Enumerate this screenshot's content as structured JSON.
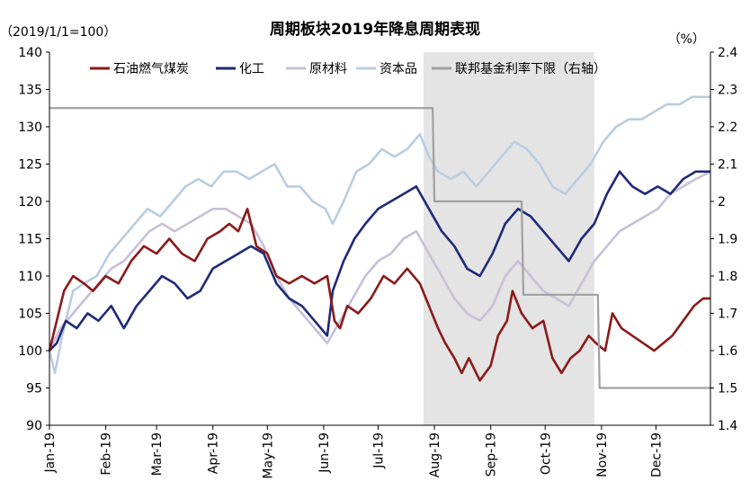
{
  "chart_data": {
    "type": "line",
    "title": "周期板块2019年降息周期表现",
    "left_unit": "（2019/1/1=100）",
    "right_unit": "（%）",
    "y_left": {
      "min": 90,
      "max": 140,
      "ticks": [
        90,
        95,
        100,
        105,
        110,
        115,
        120,
        125,
        130,
        135,
        140
      ]
    },
    "y_right": {
      "min": 1.4,
      "max": 2.4,
      "ticks": [
        "1.4",
        "1.5",
        "1.6",
        "1.7",
        "1.8",
        "1.9",
        "2",
        "2.1",
        "2.2",
        "2.3",
        "2.4"
      ]
    },
    "x_ticks": [
      "Jan-19",
      "Feb-19",
      "Mar-19",
      "Apr-19",
      "May-19",
      "Jun-19",
      "Jul-19",
      "Aug-19",
      "Sep-19",
      "Oct-19",
      "Nov-19",
      "Dec-19"
    ],
    "shaded_region": {
      "x_start": "2019-07-26",
      "x_end": "2019-10-28",
      "color": "#e4e4e4"
    },
    "legend_position": "top",
    "series": [
      {
        "name": "石油燃气煤炭",
        "color": "#8b1a1a",
        "axis": "left",
        "points": [
          [
            "2019-01-01",
            100
          ],
          [
            "2019-01-05",
            104
          ],
          [
            "2019-01-09",
            108
          ],
          [
            "2019-01-14",
            110
          ],
          [
            "2019-01-20",
            109
          ],
          [
            "2019-01-25",
            108
          ],
          [
            "2019-02-01",
            110
          ],
          [
            "2019-02-08",
            109
          ],
          [
            "2019-02-15",
            112
          ],
          [
            "2019-02-22",
            114
          ],
          [
            "2019-03-01",
            113
          ],
          [
            "2019-03-08",
            115
          ],
          [
            "2019-03-15",
            113
          ],
          [
            "2019-03-22",
            112
          ],
          [
            "2019-03-29",
            115
          ],
          [
            "2019-04-05",
            116
          ],
          [
            "2019-04-10",
            117
          ],
          [
            "2019-04-15",
            116
          ],
          [
            "2019-04-20",
            119
          ],
          [
            "2019-04-25",
            114
          ],
          [
            "2019-05-01",
            113
          ],
          [
            "2019-05-06",
            110
          ],
          [
            "2019-05-13",
            109
          ],
          [
            "2019-05-20",
            110
          ],
          [
            "2019-05-27",
            109
          ],
          [
            "2019-06-03",
            110
          ],
          [
            "2019-06-07",
            104
          ],
          [
            "2019-06-10",
            103
          ],
          [
            "2019-06-14",
            106
          ],
          [
            "2019-06-20",
            105
          ],
          [
            "2019-06-27",
            107
          ],
          [
            "2019-07-04",
            110
          ],
          [
            "2019-07-10",
            109
          ],
          [
            "2019-07-17",
            111
          ],
          [
            "2019-07-24",
            109
          ],
          [
            "2019-07-29",
            106
          ],
          [
            "2019-08-03",
            103
          ],
          [
            "2019-08-07",
            101
          ],
          [
            "2019-08-12",
            99
          ],
          [
            "2019-08-16",
            97
          ],
          [
            "2019-08-20",
            99
          ],
          [
            "2019-08-26",
            96
          ],
          [
            "2019-09-01",
            98
          ],
          [
            "2019-09-05",
            102
          ],
          [
            "2019-09-10",
            104
          ],
          [
            "2019-09-13",
            108
          ],
          [
            "2019-09-18",
            105
          ],
          [
            "2019-09-24",
            103
          ],
          [
            "2019-09-30",
            104
          ],
          [
            "2019-10-05",
            99
          ],
          [
            "2019-10-10",
            97
          ],
          [
            "2019-10-15",
            99
          ],
          [
            "2019-10-20",
            100
          ],
          [
            "2019-10-25",
            102
          ],
          [
            "2019-10-29",
            101
          ],
          [
            "2019-11-03",
            100
          ],
          [
            "2019-11-07",
            105
          ],
          [
            "2019-11-12",
            103
          ],
          [
            "2019-11-18",
            102
          ],
          [
            "2019-11-24",
            101
          ],
          [
            "2019-11-30",
            100
          ],
          [
            "2019-12-05",
            101
          ],
          [
            "2019-12-10",
            102
          ],
          [
            "2019-12-16",
            104
          ],
          [
            "2019-12-22",
            106
          ],
          [
            "2019-12-27",
            107
          ],
          [
            "2019-12-31",
            107
          ]
        ]
      },
      {
        "name": "化工",
        "color": "#1e2a78",
        "axis": "left",
        "points": [
          [
            "2019-01-01",
            100
          ],
          [
            "2019-01-05",
            101
          ],
          [
            "2019-01-10",
            104
          ],
          [
            "2019-01-16",
            103
          ],
          [
            "2019-01-22",
            105
          ],
          [
            "2019-01-28",
            104
          ],
          [
            "2019-02-04",
            106
          ],
          [
            "2019-02-11",
            103
          ],
          [
            "2019-02-18",
            106
          ],
          [
            "2019-02-25",
            108
          ],
          [
            "2019-03-04",
            110
          ],
          [
            "2019-03-11",
            109
          ],
          [
            "2019-03-18",
            107
          ],
          [
            "2019-03-25",
            108
          ],
          [
            "2019-04-01",
            111
          ],
          [
            "2019-04-08",
            112
          ],
          [
            "2019-04-15",
            113
          ],
          [
            "2019-04-22",
            114
          ],
          [
            "2019-04-29",
            113
          ],
          [
            "2019-05-06",
            109
          ],
          [
            "2019-05-13",
            107
          ],
          [
            "2019-05-20",
            106
          ],
          [
            "2019-05-27",
            104
          ],
          [
            "2019-06-03",
            102
          ],
          [
            "2019-06-06",
            108
          ],
          [
            "2019-06-12",
            112
          ],
          [
            "2019-06-18",
            115
          ],
          [
            "2019-06-24",
            117
          ],
          [
            "2019-07-01",
            119
          ],
          [
            "2019-07-08",
            120
          ],
          [
            "2019-07-15",
            121
          ],
          [
            "2019-07-22",
            122
          ],
          [
            "2019-07-29",
            119
          ],
          [
            "2019-08-05",
            116
          ],
          [
            "2019-08-12",
            114
          ],
          [
            "2019-08-19",
            111
          ],
          [
            "2019-08-26",
            110
          ],
          [
            "2019-09-02",
            113
          ],
          [
            "2019-09-09",
            117
          ],
          [
            "2019-09-16",
            119
          ],
          [
            "2019-09-23",
            118
          ],
          [
            "2019-09-30",
            116
          ],
          [
            "2019-10-07",
            114
          ],
          [
            "2019-10-14",
            112
          ],
          [
            "2019-10-21",
            115
          ],
          [
            "2019-10-28",
            117
          ],
          [
            "2019-11-04",
            121
          ],
          [
            "2019-11-11",
            124
          ],
          [
            "2019-11-18",
            122
          ],
          [
            "2019-11-25",
            121
          ],
          [
            "2019-12-02",
            122
          ],
          [
            "2019-12-09",
            121
          ],
          [
            "2019-12-16",
            123
          ],
          [
            "2019-12-23",
            124
          ],
          [
            "2019-12-31",
            124
          ]
        ]
      },
      {
        "name": "原材料",
        "color": "#c8bfd8",
        "axis": "left",
        "points": [
          [
            "2019-01-01",
            100
          ],
          [
            "2019-01-07",
            103
          ],
          [
            "2019-01-14",
            105
          ],
          [
            "2019-01-21",
            107
          ],
          [
            "2019-01-28",
            109
          ],
          [
            "2019-02-04",
            111
          ],
          [
            "2019-02-11",
            112
          ],
          [
            "2019-02-18",
            114
          ],
          [
            "2019-02-25",
            116
          ],
          [
            "2019-03-04",
            117
          ],
          [
            "2019-03-11",
            116
          ],
          [
            "2019-03-18",
            117
          ],
          [
            "2019-03-25",
            118
          ],
          [
            "2019-04-01",
            119
          ],
          [
            "2019-04-08",
            119
          ],
          [
            "2019-04-15",
            118
          ],
          [
            "2019-04-22",
            117
          ],
          [
            "2019-04-29",
            114
          ],
          [
            "2019-05-06",
            110
          ],
          [
            "2019-05-13",
            107
          ],
          [
            "2019-05-20",
            105
          ],
          [
            "2019-05-27",
            103
          ],
          [
            "2019-06-03",
            101
          ],
          [
            "2019-06-10",
            104
          ],
          [
            "2019-06-17",
            107
          ],
          [
            "2019-06-24",
            110
          ],
          [
            "2019-07-01",
            112
          ],
          [
            "2019-07-08",
            113
          ],
          [
            "2019-07-15",
            115
          ],
          [
            "2019-07-22",
            116
          ],
          [
            "2019-07-29",
            113
          ],
          [
            "2019-08-05",
            110
          ],
          [
            "2019-08-12",
            107
          ],
          [
            "2019-08-19",
            105
          ],
          [
            "2019-08-26",
            104
          ],
          [
            "2019-09-02",
            106
          ],
          [
            "2019-09-09",
            110
          ],
          [
            "2019-09-16",
            112
          ],
          [
            "2019-09-23",
            110
          ],
          [
            "2019-09-30",
            108
          ],
          [
            "2019-10-07",
            107
          ],
          [
            "2019-10-14",
            106
          ],
          [
            "2019-10-21",
            109
          ],
          [
            "2019-10-28",
            112
          ],
          [
            "2019-11-04",
            114
          ],
          [
            "2019-11-11",
            116
          ],
          [
            "2019-11-18",
            117
          ],
          [
            "2019-11-25",
            118
          ],
          [
            "2019-12-02",
            119
          ],
          [
            "2019-12-09",
            121
          ],
          [
            "2019-12-16",
            122
          ],
          [
            "2019-12-23",
            123
          ],
          [
            "2019-12-31",
            124
          ]
        ]
      },
      {
        "name": "资本品",
        "color": "#b8cde2",
        "axis": "left",
        "points": [
          [
            "2019-01-01",
            100
          ],
          [
            "2019-01-04",
            97
          ],
          [
            "2019-01-08",
            102
          ],
          [
            "2019-01-14",
            108
          ],
          [
            "2019-01-20",
            109
          ],
          [
            "2019-01-27",
            110
          ],
          [
            "2019-02-03",
            113
          ],
          [
            "2019-02-10",
            115
          ],
          [
            "2019-02-17",
            117
          ],
          [
            "2019-02-24",
            119
          ],
          [
            "2019-03-03",
            118
          ],
          [
            "2019-03-10",
            120
          ],
          [
            "2019-03-17",
            122
          ],
          [
            "2019-03-24",
            123
          ],
          [
            "2019-03-31",
            122
          ],
          [
            "2019-04-07",
            124
          ],
          [
            "2019-04-14",
            124
          ],
          [
            "2019-04-21",
            123
          ],
          [
            "2019-04-28",
            124
          ],
          [
            "2019-05-05",
            125
          ],
          [
            "2019-05-12",
            122
          ],
          [
            "2019-05-19",
            122
          ],
          [
            "2019-05-26",
            120
          ],
          [
            "2019-06-02",
            119
          ],
          [
            "2019-06-06",
            117
          ],
          [
            "2019-06-12",
            120
          ],
          [
            "2019-06-19",
            124
          ],
          [
            "2019-06-26",
            125
          ],
          [
            "2019-07-03",
            127
          ],
          [
            "2019-07-10",
            126
          ],
          [
            "2019-07-17",
            127
          ],
          [
            "2019-07-24",
            129
          ],
          [
            "2019-07-29",
            126
          ],
          [
            "2019-08-03",
            124
          ],
          [
            "2019-08-10",
            123
          ],
          [
            "2019-08-17",
            124
          ],
          [
            "2019-08-24",
            122
          ],
          [
            "2019-08-31",
            124
          ],
          [
            "2019-09-07",
            126
          ],
          [
            "2019-09-14",
            128
          ],
          [
            "2019-09-21",
            127
          ],
          [
            "2019-09-28",
            125
          ],
          [
            "2019-10-05",
            122
          ],
          [
            "2019-10-12",
            121
          ],
          [
            "2019-10-19",
            123
          ],
          [
            "2019-10-26",
            125
          ],
          [
            "2019-11-02",
            128
          ],
          [
            "2019-11-09",
            130
          ],
          [
            "2019-11-16",
            131
          ],
          [
            "2019-11-23",
            131
          ],
          [
            "2019-11-30",
            132
          ],
          [
            "2019-12-07",
            133
          ],
          [
            "2019-12-14",
            133
          ],
          [
            "2019-12-21",
            134
          ],
          [
            "2019-12-31",
            134
          ]
        ]
      },
      {
        "name": "联邦基金利率下限（右轴）",
        "color": "#a0a0a0",
        "axis": "right",
        "points": [
          [
            "2019-01-01",
            2.25
          ],
          [
            "2019-07-31",
            2.25
          ],
          [
            "2019-08-01",
            2.0
          ],
          [
            "2019-09-18",
            2.0
          ],
          [
            "2019-09-19",
            1.75
          ],
          [
            "2019-10-30",
            1.75
          ],
          [
            "2019-10-31",
            1.5
          ],
          [
            "2019-12-31",
            1.5
          ]
        ]
      }
    ]
  }
}
